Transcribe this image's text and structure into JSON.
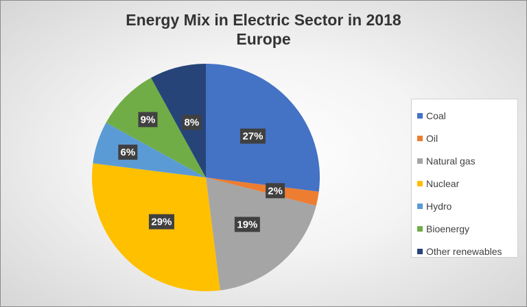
{
  "chart_data": {
    "type": "pie",
    "title_lines": [
      "Energy Mix in Electric Sector in 2018",
      "Europe"
    ],
    "slices": [
      {
        "label": "Coal",
        "value": 27,
        "display": "27%",
        "color": "#4472C4"
      },
      {
        "label": "Oil",
        "value": 2,
        "display": "2%",
        "color": "#ED7D31"
      },
      {
        "label": "Natural gas",
        "value": 19,
        "display": "19%",
        "color": "#A5A5A5"
      },
      {
        "label": "Nuclear",
        "value": 29,
        "display": "29%",
        "color": "#FFC000"
      },
      {
        "label": "Hydro",
        "value": 6,
        "display": "6%",
        "color": "#5B9BD5"
      },
      {
        "label": "Bioenergy",
        "value": 9,
        "display": "9%",
        "color": "#70AD47"
      },
      {
        "label": "Other renewables",
        "value": 8,
        "display": "8%",
        "color": "#264478"
      }
    ],
    "legend_position": "right"
  }
}
